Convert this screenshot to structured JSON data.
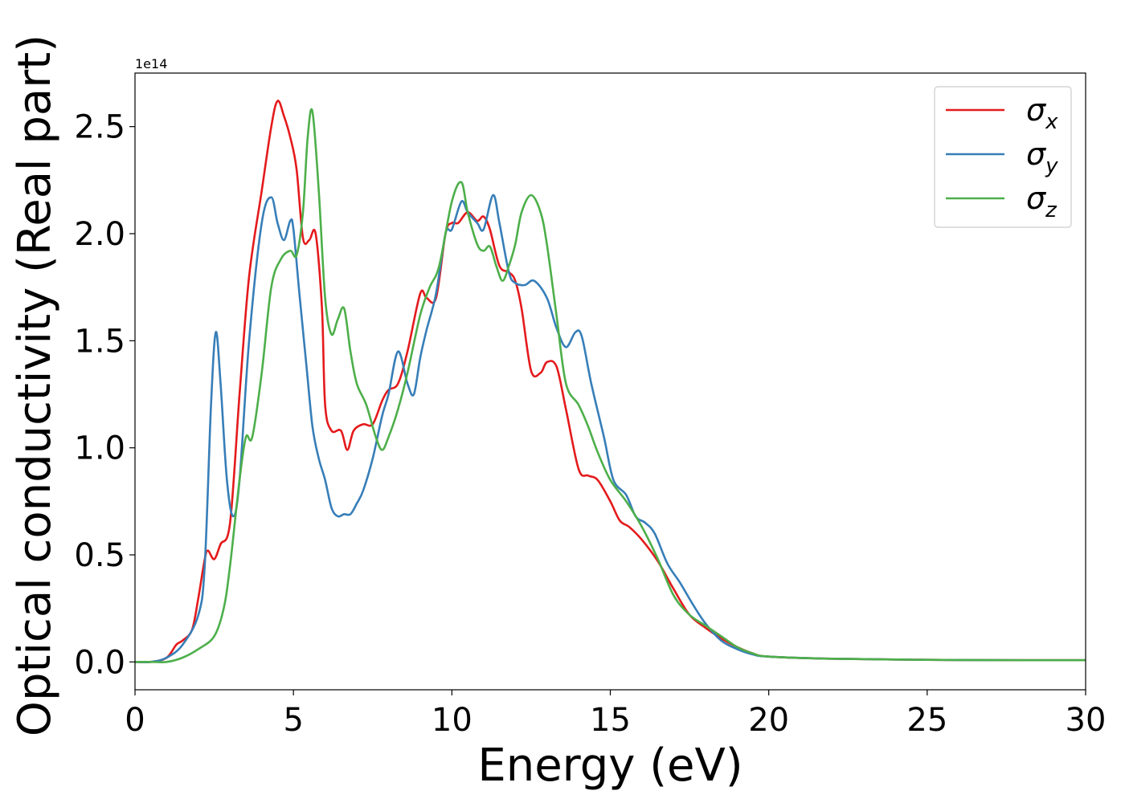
{
  "chart_data": {
    "type": "line",
    "xlabel": "Energy (eV)",
    "ylabel": "Optical conductivity (Real part)",
    "y_offset_label": "1e14",
    "xlim": [
      0,
      30
    ],
    "ylim": [
      -0.13,
      2.75
    ],
    "x_ticks": [
      0,
      5,
      10,
      15,
      20,
      25,
      30
    ],
    "x_tick_labels": [
      "0",
      "5",
      "10",
      "15",
      "20",
      "25",
      "30"
    ],
    "y_ticks": [
      0.0,
      0.5,
      1.0,
      1.5,
      2.0,
      2.5
    ],
    "y_tick_labels": [
      "0.0",
      "0.5",
      "1.0",
      "1.5",
      "2.0",
      "2.5"
    ],
    "grid": false,
    "legend_position": "top-right",
    "series": [
      {
        "name": "σx",
        "symbol": "σ",
        "subscript": "x",
        "color": "#e41a1c",
        "x": [
          0,
          0.5,
          1.0,
          1.3,
          1.5,
          1.8,
          2.0,
          2.2,
          2.3,
          2.5,
          2.7,
          3.0,
          3.3,
          3.6,
          4.0,
          4.3,
          4.5,
          4.7,
          4.9,
          5.1,
          5.3,
          5.5,
          5.7,
          5.9,
          6.0,
          6.2,
          6.5,
          6.7,
          6.9,
          7.2,
          7.5,
          7.8,
          8.0,
          8.3,
          8.6,
          9.0,
          9.2,
          9.5,
          9.8,
          10.0,
          10.2,
          10.5,
          10.8,
          11.0,
          11.2,
          11.5,
          11.8,
          12.0,
          12.2,
          12.5,
          12.8,
          13.0,
          13.3,
          13.6,
          14.0,
          14.3,
          14.6,
          15.0,
          15.3,
          15.6,
          16.0,
          16.5,
          17.0,
          17.5,
          18.0,
          18.5,
          19.0,
          19.5,
          20,
          22,
          25,
          28,
          30
        ],
        "y": [
          0.0,
          0.0,
          0.02,
          0.08,
          0.1,
          0.15,
          0.3,
          0.48,
          0.52,
          0.48,
          0.55,
          0.65,
          1.25,
          1.8,
          2.2,
          2.5,
          2.62,
          2.55,
          2.45,
          2.3,
          1.98,
          1.97,
          2.0,
          1.65,
          1.2,
          1.08,
          1.08,
          0.99,
          1.08,
          1.11,
          1.11,
          1.22,
          1.27,
          1.3,
          1.45,
          1.72,
          1.7,
          1.7,
          2.0,
          2.05,
          2.05,
          2.1,
          2.06,
          2.08,
          2.02,
          1.85,
          1.82,
          1.78,
          1.65,
          1.36,
          1.35,
          1.4,
          1.38,
          1.18,
          0.9,
          0.87,
          0.85,
          0.75,
          0.66,
          0.63,
          0.57,
          0.47,
          0.34,
          0.22,
          0.16,
          0.11,
          0.07,
          0.04,
          0.025,
          0.015,
          0.01,
          0.008,
          0.008
        ]
      },
      {
        "name": "σy",
        "symbol": "σ",
        "subscript": "y",
        "color": "#377eb8",
        "x": [
          0,
          0.5,
          1.0,
          1.5,
          2.0,
          2.2,
          2.4,
          2.55,
          2.7,
          2.9,
          3.1,
          3.3,
          3.6,
          4.0,
          4.3,
          4.5,
          4.7,
          4.9,
          5.0,
          5.2,
          5.4,
          5.6,
          5.8,
          6.0,
          6.2,
          6.4,
          6.6,
          6.8,
          7.0,
          7.2,
          7.5,
          7.8,
          8.0,
          8.3,
          8.6,
          8.8,
          9.0,
          9.2,
          9.5,
          9.8,
          10.0,
          10.3,
          10.5,
          10.8,
          11.0,
          11.3,
          11.5,
          11.8,
          12.0,
          12.3,
          12.6,
          13.0,
          13.3,
          13.6,
          13.9,
          14.1,
          14.4,
          14.8,
          15.1,
          15.5,
          15.8,
          16.1,
          16.4,
          16.8,
          17.2,
          17.6,
          18.0,
          18.5,
          19.0,
          19.5,
          20,
          22,
          25,
          28,
          30
        ],
        "y": [
          0.0,
          0.0,
          0.02,
          0.08,
          0.22,
          0.45,
          1.2,
          1.54,
          1.3,
          0.85,
          0.68,
          0.85,
          1.5,
          2.05,
          2.17,
          2.05,
          1.97,
          2.06,
          2.02,
          1.7,
          1.4,
          1.1,
          0.95,
          0.85,
          0.72,
          0.68,
          0.69,
          0.69,
          0.74,
          0.8,
          0.95,
          1.15,
          1.25,
          1.45,
          1.3,
          1.25,
          1.42,
          1.55,
          1.72,
          2.0,
          2.02,
          2.15,
          2.1,
          2.05,
          2.02,
          2.18,
          2.05,
          1.82,
          1.77,
          1.76,
          1.78,
          1.7,
          1.56,
          1.47,
          1.54,
          1.52,
          1.3,
          1.05,
          0.85,
          0.78,
          0.68,
          0.65,
          0.6,
          0.46,
          0.37,
          0.27,
          0.18,
          0.1,
          0.06,
          0.035,
          0.025,
          0.015,
          0.01,
          0.008,
          0.008
        ]
      },
      {
        "name": "σz",
        "symbol": "σ",
        "subscript": "z",
        "color": "#4daf4a",
        "x": [
          0,
          0.5,
          1.0,
          1.5,
          2.0,
          2.5,
          2.8,
          3.0,
          3.3,
          3.5,
          3.7,
          4.0,
          4.3,
          4.6,
          4.9,
          5.1,
          5.3,
          5.45,
          5.6,
          5.8,
          6.0,
          6.2,
          6.4,
          6.6,
          6.8,
          7.0,
          7.3,
          7.6,
          7.8,
          8.0,
          8.3,
          8.6,
          9.0,
          9.3,
          9.6,
          10.0,
          10.3,
          10.5,
          10.8,
          11.0,
          11.2,
          11.4,
          11.6,
          11.8,
          12.0,
          12.2,
          12.5,
          12.8,
          13.0,
          13.3,
          13.6,
          14.0,
          14.3,
          14.6,
          15.0,
          15.5,
          16.0,
          16.5,
          17.0,
          17.5,
          18.0,
          18.5,
          19.0,
          19.5,
          20,
          22,
          25,
          28,
          30
        ],
        "y": [
          0.0,
          0.0,
          0.0,
          0.02,
          0.06,
          0.12,
          0.25,
          0.45,
          0.85,
          1.05,
          1.05,
          1.35,
          1.75,
          1.88,
          1.92,
          1.9,
          2.1,
          2.45,
          2.57,
          2.2,
          1.7,
          1.53,
          1.6,
          1.65,
          1.45,
          1.3,
          1.2,
          1.05,
          0.99,
          1.05,
          1.18,
          1.35,
          1.62,
          1.75,
          1.85,
          2.15,
          2.24,
          2.1,
          1.95,
          1.92,
          1.94,
          1.85,
          1.78,
          1.85,
          1.95,
          2.1,
          2.18,
          2.1,
          1.95,
          1.62,
          1.3,
          1.2,
          1.1,
          0.98,
          0.85,
          0.75,
          0.63,
          0.48,
          0.31,
          0.22,
          0.17,
          0.12,
          0.07,
          0.04,
          0.025,
          0.015,
          0.01,
          0.008,
          0.008
        ]
      }
    ]
  }
}
